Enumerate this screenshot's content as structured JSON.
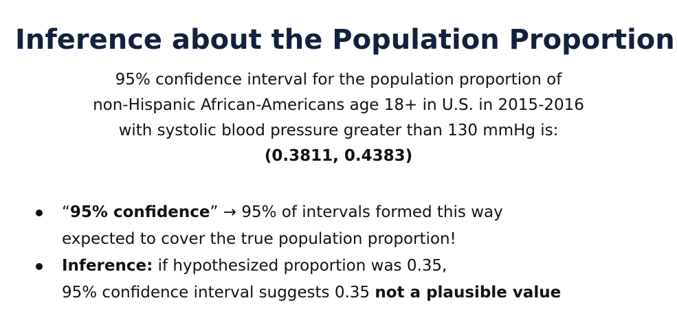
{
  "slide": {
    "title": "Inference about the Population Proportion",
    "statement": {
      "line1": "95% confidence interval for the population proportion of",
      "line2": "non-Hispanic African-Americans age 18+ in U.S. in 2015-2016",
      "line3": "with systolic blood pressure greater than 130 mmHg is:",
      "interval": "(0.3811, 0.4383)"
    },
    "bullets": [
      {
        "open_quote": "“",
        "bold": "95% confidence",
        "close_quote": "”",
        "rest": " → 95% of intervals formed this way",
        "line2": "expected to cover the true population proportion!"
      },
      {
        "bold": "Inference:",
        "rest": " if hypothesized proportion was 0.35,",
        "line2_prefix": "95% confidence interval suggests 0.35 ",
        "line2_bold": "not a plausible value"
      }
    ]
  }
}
